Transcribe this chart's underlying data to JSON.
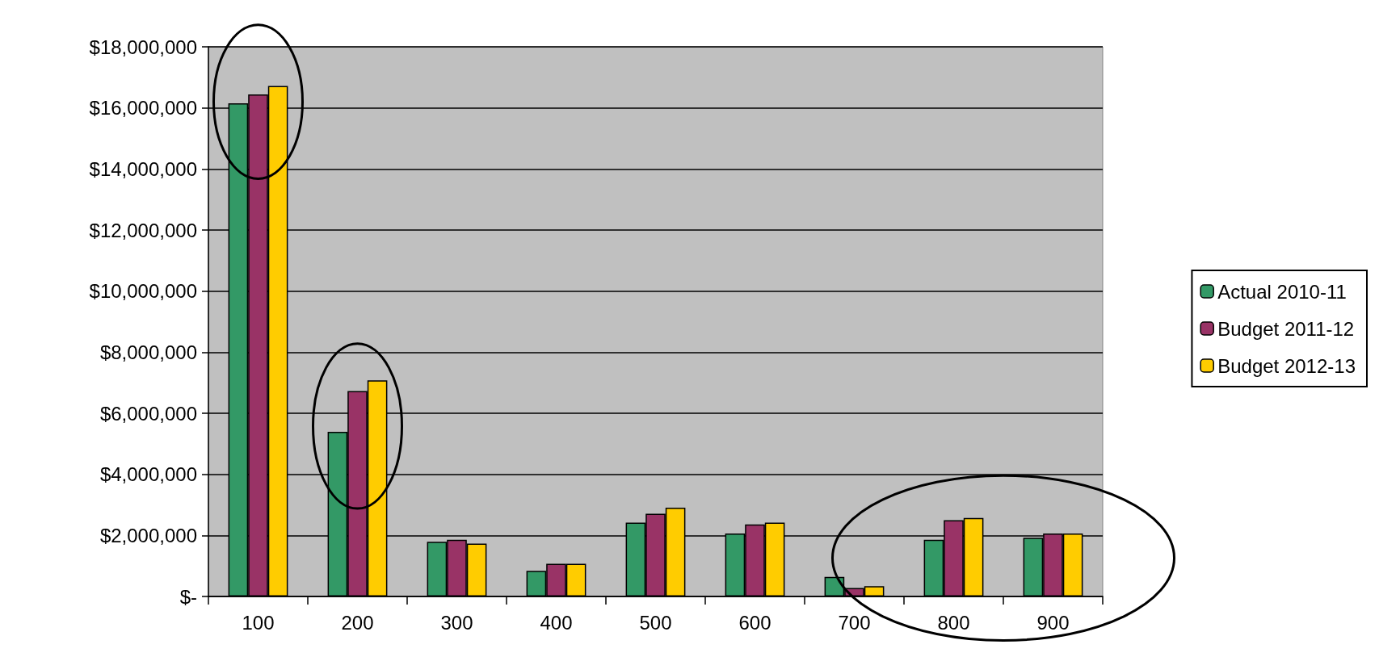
{
  "chart_data": {
    "type": "bar",
    "categories": [
      "100",
      "200",
      "300",
      "400",
      "500",
      "600",
      "700",
      "800",
      "900"
    ],
    "series": [
      {
        "name": "Actual 2010-11",
        "color": "#339966",
        "values": [
          16150000,
          5390000,
          1790000,
          840000,
          2420000,
          2060000,
          640000,
          1860000,
          1920000
        ]
      },
      {
        "name": "Budget 2011-12",
        "color": "#993366",
        "values": [
          16440000,
          6730000,
          1860000,
          1070000,
          2710000,
          2360000,
          280000,
          2500000,
          2060000
        ]
      },
      {
        "name": "Budget 2012-13",
        "color": "#ffcc00",
        "values": [
          16720000,
          7080000,
          1730000,
          1070000,
          2910000,
          2420000,
          340000,
          2570000,
          2060000
        ]
      }
    ],
    "ylim": [
      0,
      18000000
    ],
    "yticks": [
      {
        "value": 0,
        "label": "$-"
      },
      {
        "value": 2000000,
        "label": "$2,000,000"
      },
      {
        "value": 4000000,
        "label": "$4,000,000"
      },
      {
        "value": 6000000,
        "label": "$6,000,000"
      },
      {
        "value": 8000000,
        "label": "$8,000,000"
      },
      {
        "value": 10000000,
        "label": "$10,000,000"
      },
      {
        "value": 12000000,
        "label": "$12,000,000"
      },
      {
        "value": 14000000,
        "label": "$14,000,000"
      },
      {
        "value": 16000000,
        "label": "$16,000,000"
      },
      {
        "value": 18000000,
        "label": "$18,000,000"
      }
    ],
    "grid": "y",
    "legend": "right"
  }
}
